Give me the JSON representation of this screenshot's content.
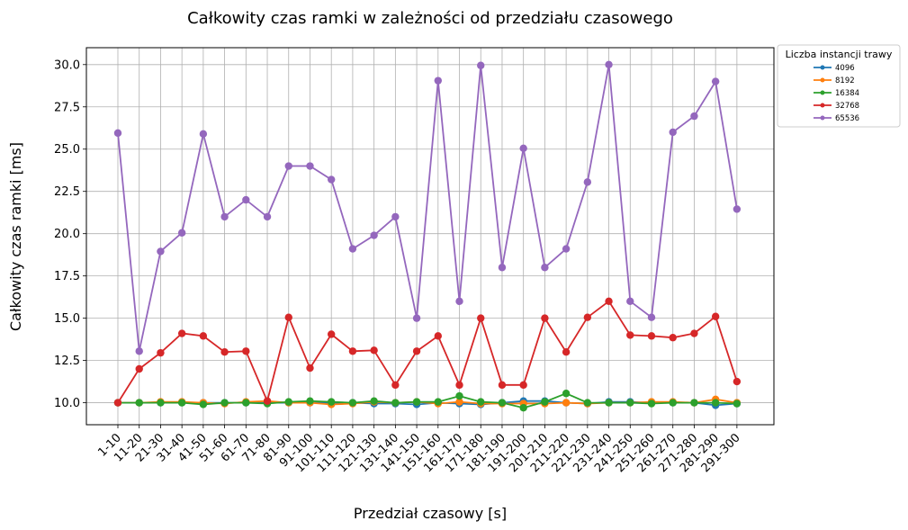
{
  "chart_data": {
    "type": "line",
    "title": "Całkowity czas ramki w zależności od przedziału czasowego",
    "xlabel": "Przedział czasowy [s]",
    "ylabel": "Całkowity czas ramki [ms]",
    "ylim": [
      8.7,
      31.0
    ],
    "yticks": [
      10.0,
      12.5,
      15.0,
      17.5,
      20.0,
      22.5,
      25.0,
      27.5,
      30.0
    ],
    "ytick_labels": [
      "10.0",
      "12.5",
      "15.0",
      "17.5",
      "20.0",
      "22.5",
      "25.0",
      "27.5",
      "30.0"
    ],
    "grid": true,
    "legend_title": "Liczba instancji trawy",
    "legend_position": "outside-top-right",
    "categories": [
      "1-10",
      "11-20",
      "21-30",
      "31-40",
      "41-50",
      "51-60",
      "61-70",
      "71-80",
      "81-90",
      "91-100",
      "101-110",
      "111-120",
      "121-130",
      "131-140",
      "141-150",
      "151-160",
      "161-170",
      "171-180",
      "181-190",
      "191-200",
      "201-210",
      "211-220",
      "221-230",
      "231-240",
      "241-250",
      "251-260",
      "261-270",
      "271-280",
      "281-290",
      "291-300"
    ],
    "series": [
      {
        "name": "4096",
        "color": "#1f77b4",
        "values": [
          10.0,
          10.0,
          10.0,
          10.0,
          10.0,
          10.0,
          10.0,
          10.0,
          10.0,
          10.0,
          10.0,
          10.0,
          9.95,
          9.95,
          9.9,
          10.0,
          9.95,
          9.9,
          10.0,
          10.1,
          10.1,
          10.0,
          9.95,
          10.05,
          10.05,
          10.0,
          10.0,
          10.0,
          9.85,
          9.95
        ]
      },
      {
        "name": "8192",
        "color": "#ff7f0e",
        "values": [
          10.0,
          10.0,
          10.05,
          10.05,
          10.0,
          9.95,
          10.05,
          10.1,
          10.0,
          10.0,
          9.9,
          9.95,
          10.05,
          10.0,
          10.05,
          9.95,
          10.05,
          9.95,
          9.95,
          9.95,
          9.95,
          10.0,
          9.95,
          10.0,
          10.0,
          10.05,
          10.05,
          10.0,
          10.2,
          10.0
        ]
      },
      {
        "name": "16384",
        "color": "#2ca02c",
        "values": [
          10.0,
          10.0,
          10.0,
          10.0,
          9.9,
          10.0,
          10.0,
          9.95,
          10.05,
          10.1,
          10.05,
          10.0,
          10.1,
          10.0,
          10.05,
          10.05,
          10.4,
          10.05,
          10.0,
          9.7,
          10.05,
          10.55,
          10.0,
          10.0,
          10.0,
          9.95,
          10.0,
          10.0,
          10.0,
          9.95
        ]
      },
      {
        "name": "32768",
        "color": "#d62728",
        "values": [
          10.0,
          12.0,
          12.95,
          14.1,
          13.95,
          13.0,
          13.05,
          10.1,
          15.05,
          12.05,
          14.05,
          13.05,
          13.1,
          11.05,
          13.05,
          13.95,
          11.05,
          15.0,
          11.05,
          11.05,
          15.0,
          13.0,
          15.05,
          16.0,
          14.0,
          13.95,
          13.85,
          14.1,
          15.1,
          11.25
        ]
      },
      {
        "name": "65536",
        "color": "#9467bd",
        "values": [
          25.95,
          13.05,
          18.95,
          20.05,
          25.9,
          21.0,
          22.0,
          21.0,
          24.0,
          24.0,
          23.2,
          19.1,
          19.9,
          21.0,
          15.0,
          29.05,
          16.0,
          29.95,
          18.0,
          25.05,
          18.0,
          19.1,
          23.05,
          30.0,
          16.0,
          15.05,
          26.0,
          26.95,
          29.0,
          21.45
        ]
      }
    ]
  }
}
